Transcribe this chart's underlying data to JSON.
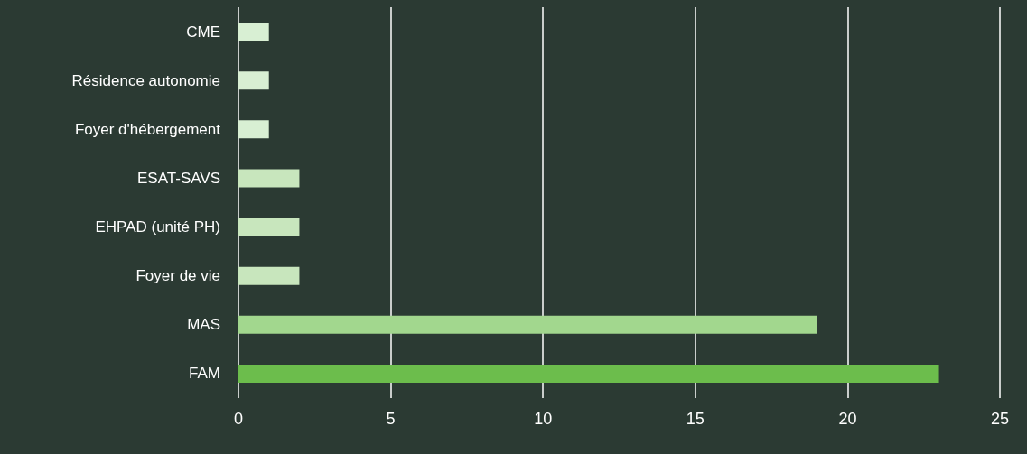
{
  "chart_data": {
    "type": "bar",
    "orientation": "horizontal",
    "categories": [
      "CME",
      "Résidence autonomie",
      "Foyer d'hébergement",
      "ESAT-SAVS",
      "EHPAD (unité PH)",
      "Foyer de vie",
      "MAS",
      "FAM"
    ],
    "values": [
      1,
      1,
      1,
      2,
      2,
      2,
      19,
      23
    ],
    "colors": [
      "#d8efd3",
      "#d8efd3",
      "#d8efd3",
      "#c8e6bd",
      "#c8e6bd",
      "#c8e6bd",
      "#a2d78e",
      "#6cbd4c"
    ],
    "xlim": [
      0,
      25
    ],
    "xticks": [
      0,
      5,
      10,
      15,
      20,
      25
    ],
    "grid": "x"
  }
}
